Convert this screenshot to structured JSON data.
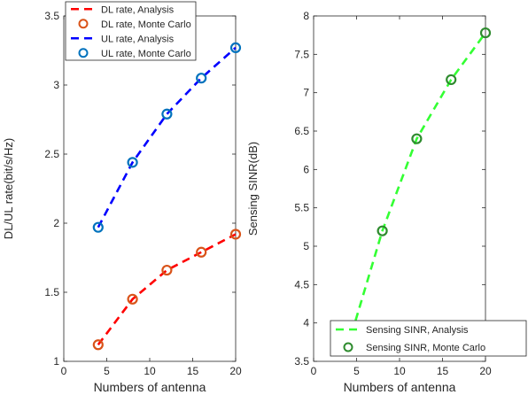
{
  "chart_data": [
    {
      "type": "line",
      "title": "",
      "xlabel": "Numbers of antenna",
      "ylabel": "DL/UL rate(bit/s/Hz)",
      "xlim": [
        0,
        20
      ],
      "ylim": [
        1,
        3.5
      ],
      "xticks": [
        0,
        5,
        10,
        15,
        20
      ],
      "yticks": [
        1,
        1.5,
        2,
        2.5,
        3,
        3.5
      ],
      "xtick_labels": [
        "0",
        "5",
        "10",
        "15",
        "20"
      ],
      "ytick_labels": [
        "1",
        "1.5",
        "2",
        "2.5",
        "3",
        "3.5"
      ],
      "grid": false,
      "legend_position": "top-left",
      "series": [
        {
          "name": "DL rate, Analysis",
          "style": "dashed-line",
          "color": "#ff0000",
          "x": [
            4,
            8,
            12,
            16,
            20
          ],
          "y": [
            1.12,
            1.45,
            1.66,
            1.79,
            1.92
          ]
        },
        {
          "name": "DL rate, Monte Carlo",
          "style": "circle-marker",
          "color": "#d95319",
          "x": [
            4,
            8,
            12,
            16,
            20
          ],
          "y": [
            1.12,
            1.45,
            1.66,
            1.79,
            1.92
          ]
        },
        {
          "name": "UL rate, Analysis",
          "style": "dashed-line",
          "color": "#0000ff",
          "x": [
            4,
            8,
            12,
            16,
            20
          ],
          "y": [
            1.97,
            2.44,
            2.79,
            3.05,
            3.27
          ]
        },
        {
          "name": "UL rate, Monte Carlo",
          "style": "circle-marker",
          "color": "#0072bd",
          "x": [
            4,
            8,
            12,
            16,
            20
          ],
          "y": [
            1.97,
            2.44,
            2.79,
            3.05,
            3.27
          ]
        }
      ]
    },
    {
      "type": "line",
      "title": "",
      "xlabel": "Numbers of antenna",
      "ylabel": "Sensing SINR(dB)",
      "xlim": [
        0,
        20
      ],
      "ylim": [
        3.5,
        8
      ],
      "xticks": [
        0,
        5,
        10,
        15,
        20
      ],
      "yticks": [
        3.5,
        4,
        4.5,
        5,
        5.5,
        6,
        6.5,
        7,
        7.5,
        8
      ],
      "xtick_labels": [
        "0",
        "5",
        "10",
        "15",
        "20"
      ],
      "ytick_labels": [
        "3.5",
        "4",
        "4.5",
        "5",
        "5.5",
        "6",
        "6.5",
        "7",
        "7.5",
        "8"
      ],
      "grid": false,
      "legend_position": "bottom-right",
      "series": [
        {
          "name": "Sensing SINR, Analysis",
          "style": "dashed-line",
          "color": "#33ff33",
          "x": [
            4,
            8,
            12,
            16,
            20
          ],
          "y": [
            3.7,
            5.2,
            6.4,
            7.17,
            7.78
          ]
        },
        {
          "name": "Sensing SINR, Monte Carlo",
          "style": "circle-marker",
          "color": "#2e8b2e",
          "x": [
            4,
            8,
            12,
            16,
            20
          ],
          "y": [
            3.7,
            5.2,
            6.4,
            7.17,
            7.78
          ]
        }
      ]
    }
  ]
}
